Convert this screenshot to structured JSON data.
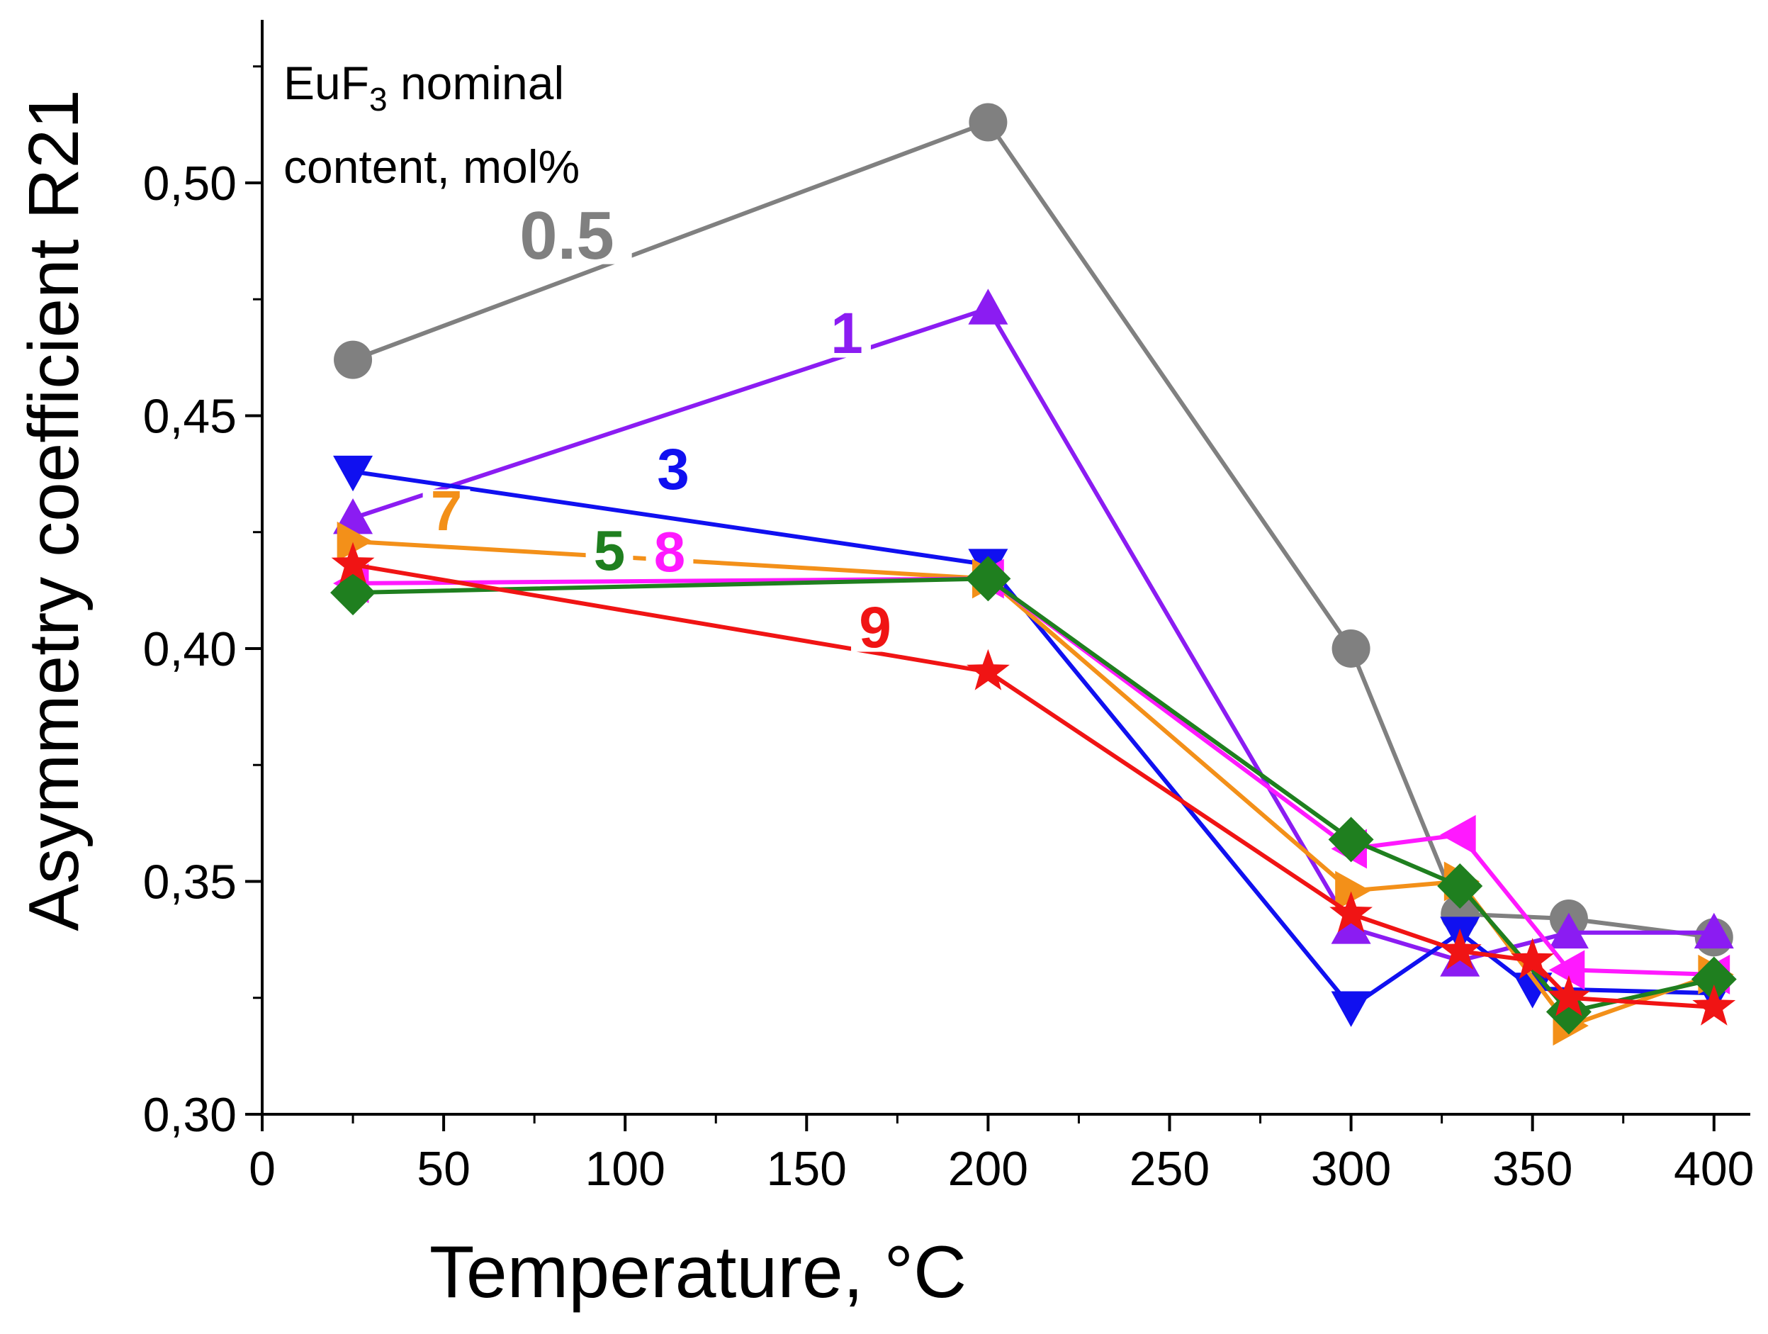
{
  "chart_data": {
    "type": "line",
    "xlabel": "Temperature, °C",
    "ylabel": "Asymmetry coefficient R21",
    "xlim": [
      0,
      410
    ],
    "ylim": [
      0.3,
      0.535
    ],
    "xticks": [
      0,
      50,
      100,
      150,
      200,
      250,
      300,
      350,
      400
    ],
    "xtick_labels": [
      "0",
      "50",
      "100",
      "150",
      "200",
      "250",
      "300",
      "350",
      "400"
    ],
    "yticks": [
      0.3,
      0.35,
      0.4,
      0.45,
      0.5
    ],
    "ytick_labels": [
      "0,30",
      "0,35",
      "0,40",
      "0,45",
      "0,50"
    ],
    "legend_title": {
      "prefix": "EuF",
      "subscript": "3",
      "suffix": " nominal",
      "line2": "content, mol%"
    },
    "series": [
      {
        "name": "0.5",
        "color": "#808080",
        "marker": "circle",
        "x": [
          25,
          200,
          300,
          330,
          360,
          400
        ],
        "y": [
          0.462,
          0.513,
          0.4,
          0.343,
          0.342,
          0.338
        ]
      },
      {
        "name": "1",
        "color": "#8B1CF2",
        "marker": "triangle-up",
        "x": [
          25,
          200,
          300,
          330,
          360,
          400
        ],
        "y": [
          0.428,
          0.473,
          0.34,
          0.333,
          0.339,
          0.339
        ]
      },
      {
        "name": "3",
        "color": "#1010F0",
        "marker": "triangle-down",
        "x": [
          25,
          200,
          300,
          330,
          350,
          400
        ],
        "y": [
          0.438,
          0.418,
          0.323,
          0.339,
          0.327,
          0.326
        ]
      },
      {
        "name": "7",
        "color": "#F39019",
        "marker": "triangle-right",
        "x": [
          25,
          200,
          300,
          330,
          360,
          400
        ],
        "y": [
          0.423,
          0.415,
          0.348,
          0.35,
          0.319,
          0.33
        ]
      },
      {
        "name": "8",
        "color": "#FF19FF",
        "marker": "triangle-left",
        "x": [
          25,
          200,
          300,
          330,
          360,
          400
        ],
        "y": [
          0.414,
          0.415,
          0.357,
          0.36,
          0.331,
          0.33
        ]
      },
      {
        "name": "5",
        "color": "#1F7F1F",
        "marker": "diamond",
        "x": [
          25,
          200,
          300,
          330,
          360,
          400
        ],
        "y": [
          0.412,
          0.415,
          0.359,
          0.349,
          0.322,
          0.329
        ]
      },
      {
        "name": "9",
        "color": "#F01414",
        "marker": "star",
        "x": [
          25,
          200,
          300,
          330,
          350,
          360,
          400
        ],
        "y": [
          0.418,
          0.395,
          0.343,
          0.335,
          0.333,
          0.325,
          0.323
        ]
      }
    ],
    "annotations": [
      {
        "series": "0.5",
        "text": "0.5",
        "x": 100,
        "y": 0.481
      },
      {
        "series": "1",
        "text": "1",
        "x": 100,
        "y": 0.461
      },
      {
        "series": "3",
        "text": "3",
        "x": 100,
        "y": 0.429
      },
      {
        "series": "7",
        "text": "7",
        "x": 100,
        "y": 0.419
      },
      {
        "series": "5",
        "text": "5",
        "x": 100,
        "y": 0.414
      },
      {
        "series": "8",
        "text": "8",
        "x": 100,
        "y": 0.414
      },
      {
        "series": "9",
        "text": "9",
        "x": 100,
        "y": 0.399
      }
    ]
  }
}
